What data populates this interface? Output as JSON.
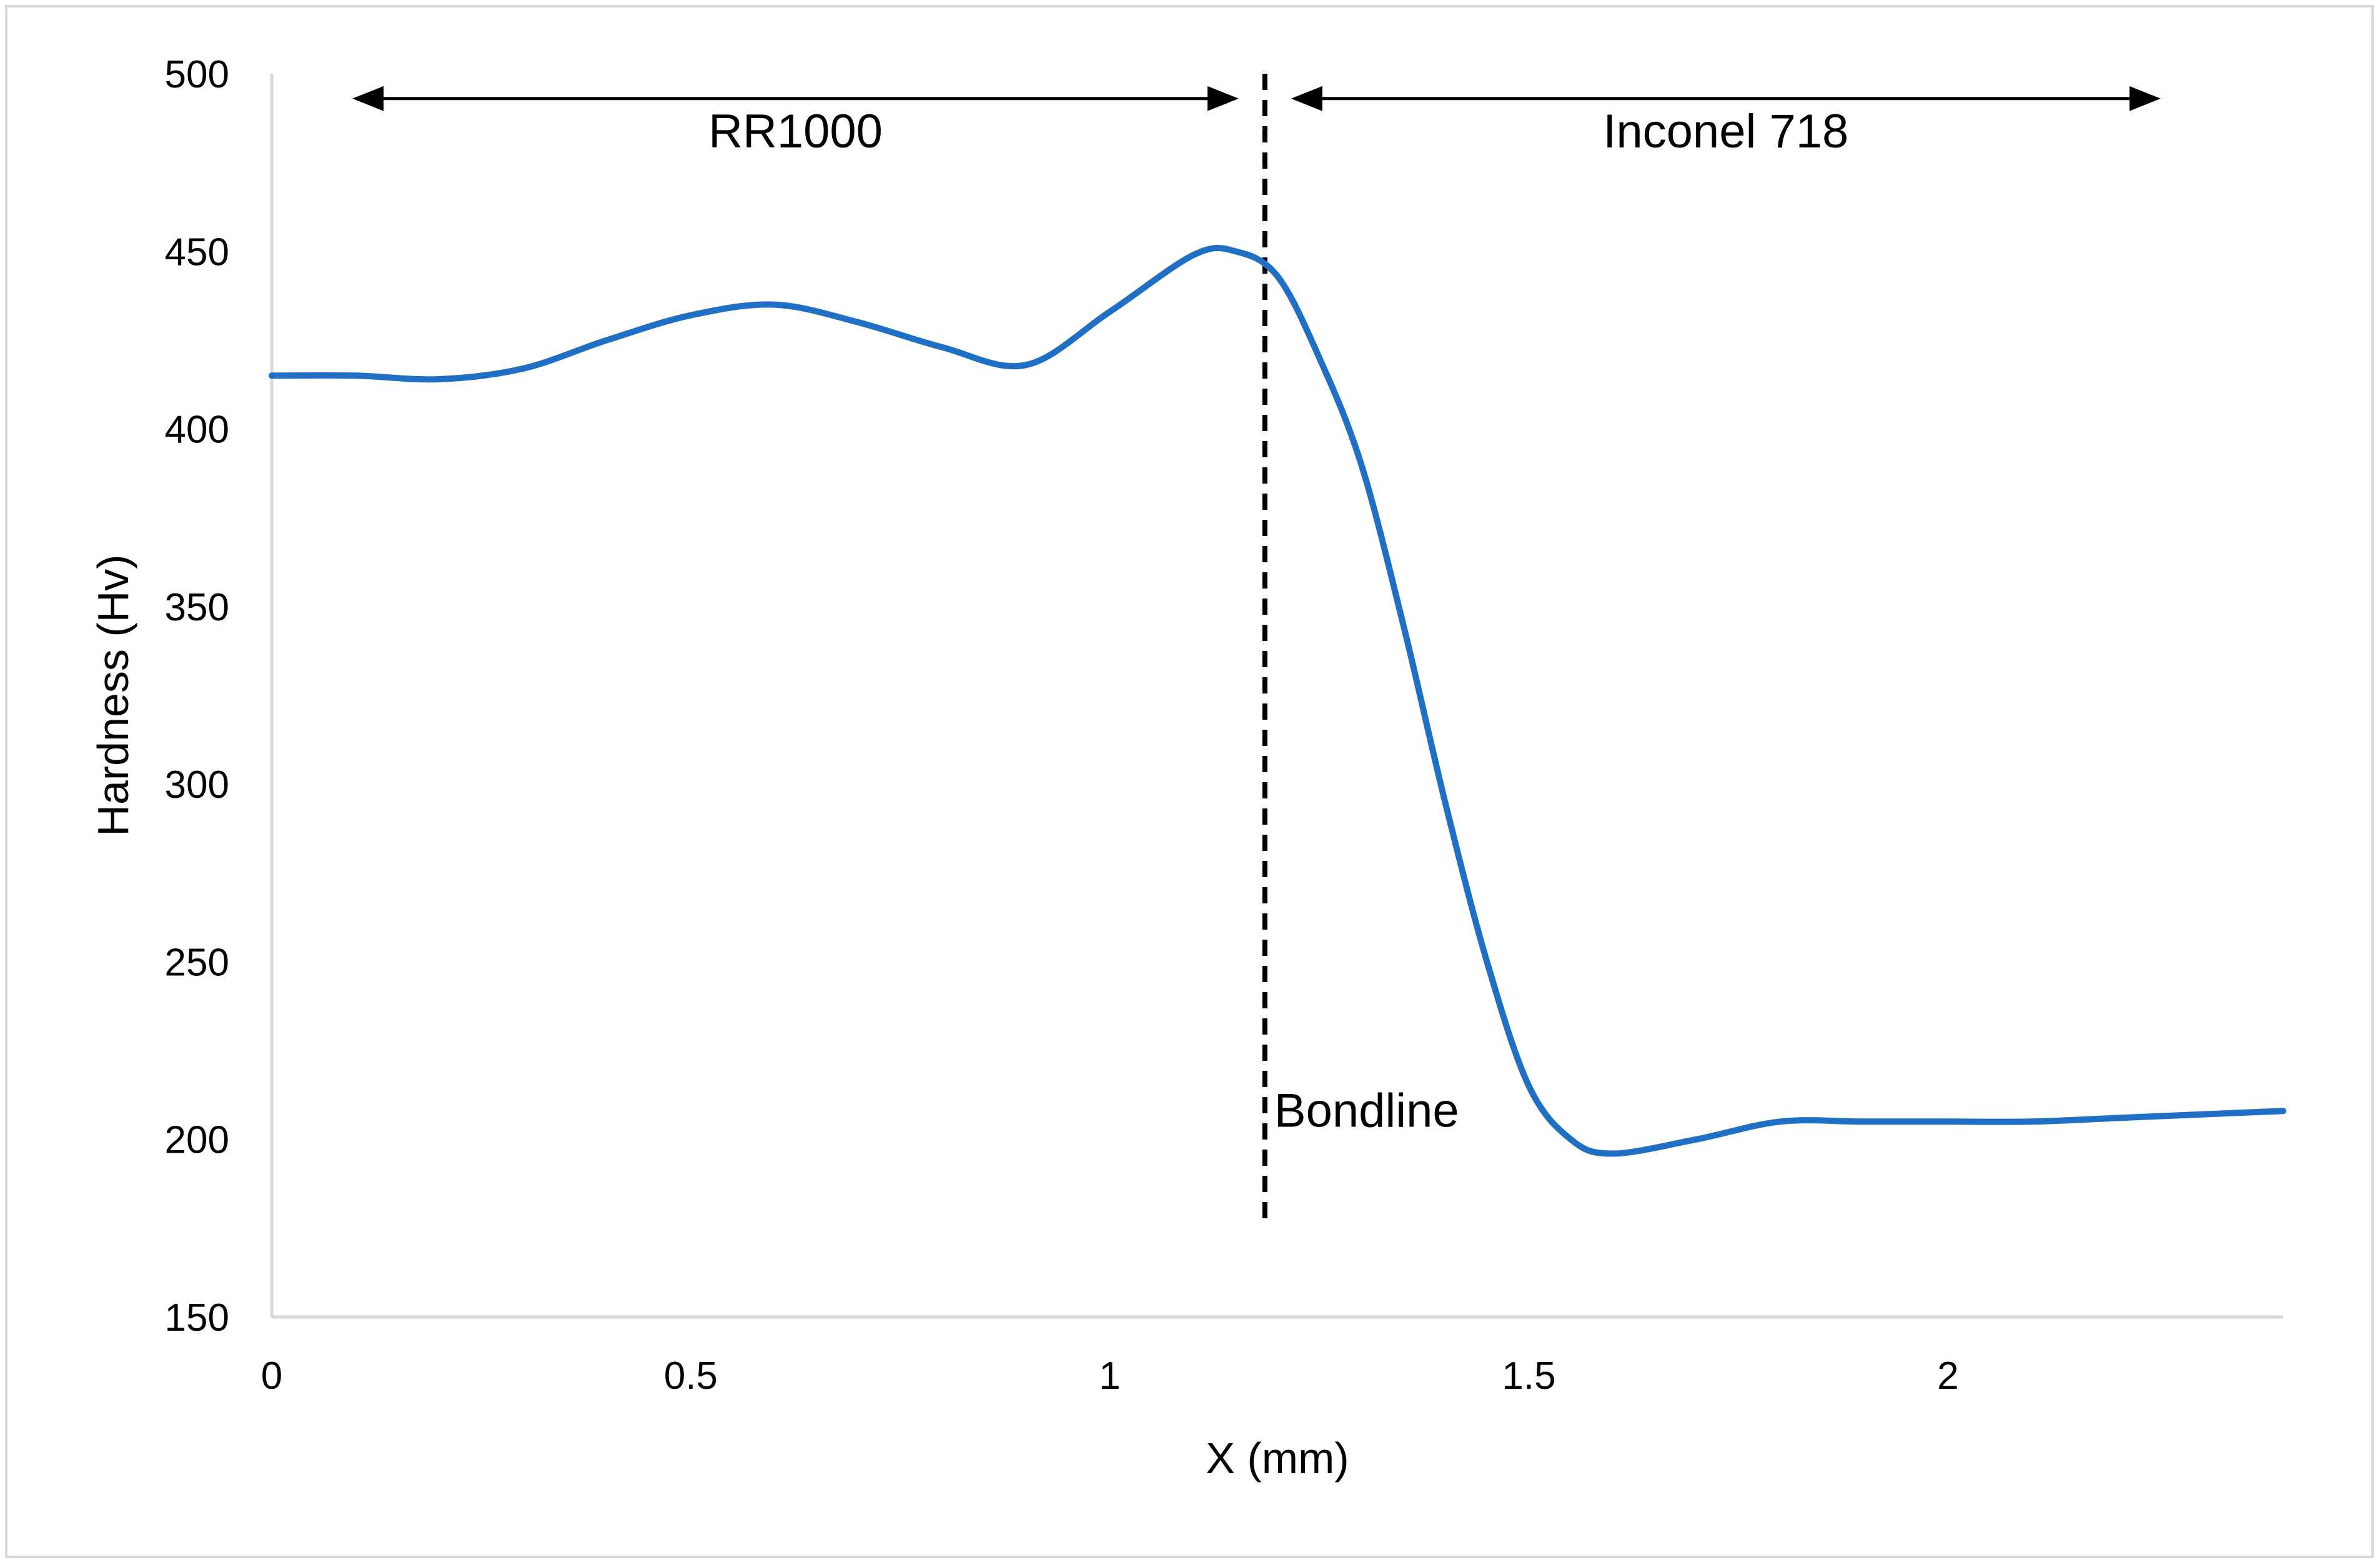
{
  "chart_data": {
    "type": "line",
    "title": "",
    "xlabel": "X (mm)",
    "ylabel": "Hardness (Hv)",
    "xlim": [
      0,
      2.4
    ],
    "ylim": [
      150,
      500
    ],
    "xticks": [
      0,
      0.5,
      1,
      1.5,
      2
    ],
    "xtick_labels": [
      "0",
      "0.5",
      "1",
      "1.5",
      "2"
    ],
    "yticks": [
      150,
      200,
      250,
      300,
      350,
      400,
      450,
      500
    ],
    "ytick_labels": [
      "150",
      "200",
      "250",
      "300",
      "350",
      "400",
      "450",
      "500"
    ],
    "grid": false,
    "legend": "none",
    "series": [
      {
        "color": "#1f6fc5",
        "x": [
          0,
          0.1,
          0.2,
          0.3,
          0.4,
          0.5,
          0.6,
          0.7,
          0.8,
          0.9,
          1.0,
          1.1,
          1.15,
          1.2,
          1.25,
          1.3,
          1.35,
          1.4,
          1.45,
          1.5,
          1.55,
          1.6,
          1.7,
          1.8,
          1.9,
          2.0,
          2.1,
          2.2,
          2.3,
          2.4
        ],
        "y": [
          415,
          415,
          414,
          417,
          425,
          432,
          435,
          430,
          423,
          418,
          433,
          449,
          450,
          443,
          420,
          390,
          345,
          295,
          250,
          215,
          200,
          196,
          200,
          205,
          205,
          205,
          205,
          206,
          207,
          208
        ]
      }
    ],
    "annotations": {
      "bondline": {
        "x": 1.185,
        "y_from": 175,
        "y_to": 500,
        "label": "Bondline",
        "style": "dashed"
      },
      "regions": [
        {
          "label": "RR1000",
          "x_from": 0.1,
          "x_to": 1.15,
          "y": 493
        },
        {
          "label": "Inconel 718",
          "x_from": 1.22,
          "x_to": 2.25,
          "y": 493
        }
      ]
    }
  }
}
